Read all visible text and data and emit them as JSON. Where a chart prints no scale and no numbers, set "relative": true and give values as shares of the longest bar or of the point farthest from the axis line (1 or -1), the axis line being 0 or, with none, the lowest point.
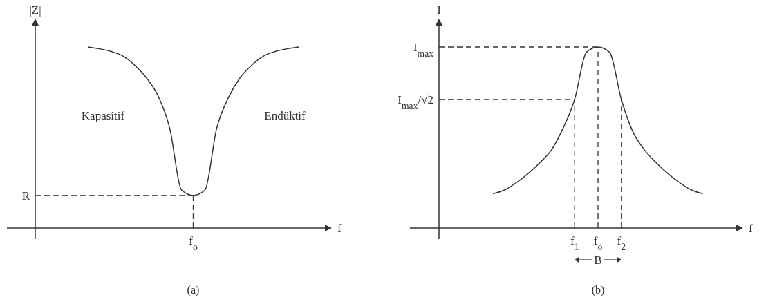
{
  "chart_data": [
    {
      "type": "line",
      "title": "(a)",
      "xlabel": "f",
      "ylabel": "|Z|",
      "relative": true,
      "tick_labels": "x",
      "categories": [
        null,
        null,
        null,
        null,
        null,
        null,
        null,
        null,
        null,
        null,
        null,
        null,
        null,
        null,
        null,
        null,
        null,
        null,
        null
      ],
      "series": [
        {
          "color": "#333333",
          "values": [
            1.0,
            0.99,
            0.975,
            0.95,
            0.9,
            0.83,
            0.73,
            0.55,
            0.21,
            0.18,
            0.21,
            0.55,
            0.72,
            0.83,
            0.9,
            0.95,
            0.975,
            0.99,
            1.0
          ]
        }
      ],
      "ref_lines": [
        {
          "axis": "y",
          "value": 0.18,
          "label": "R",
          "line_style": "dashed"
        },
        {
          "axis": "x",
          "label": "f$_{o}$",
          "line_style": "dashed"
        }
      ],
      "annotations": [
        "Kapasitif",
        "Endüktif"
      ]
    },
    {
      "type": "line",
      "title": "(b)",
      "xlabel": "f",
      "ylabel": "I",
      "relative": true,
      "tick_labels": "x",
      "categories": [
        null,
        null,
        null,
        null,
        null,
        null,
        null,
        "f$_{1}$",
        null,
        "f$_{o}$",
        null,
        "f$_{2}$",
        null,
        null,
        null,
        null,
        null,
        null,
        null
      ],
      "series": [
        {
          "color": "#333333",
          "values": [
            0.19,
            0.21,
            0.25,
            0.3,
            0.36,
            0.43,
            0.55,
            0.71,
            0.97,
            1.0,
            0.97,
            0.71,
            0.53,
            0.43,
            0.36,
            0.3,
            0.25,
            0.21,
            0.19
          ]
        }
      ],
      "ref_lines": [
        {
          "axis": "y",
          "value": 1.0,
          "label": "I$_{max}$",
          "line_style": "dashed"
        },
        {
          "axis": "y",
          "value": 0.71,
          "label": "I$_{max}$/√2",
          "line_style": "dashed"
        },
        {
          "axis": "x",
          "value": "f$_{1}$",
          "line_style": "dashed"
        },
        {
          "axis": "x",
          "value": "f$_{o}$",
          "line_style": "dashed"
        },
        {
          "axis": "x",
          "value": "f$_{2}$",
          "line_style": "dashed"
        }
      ],
      "annotations": [
        "B"
      ]
    }
  ]
}
